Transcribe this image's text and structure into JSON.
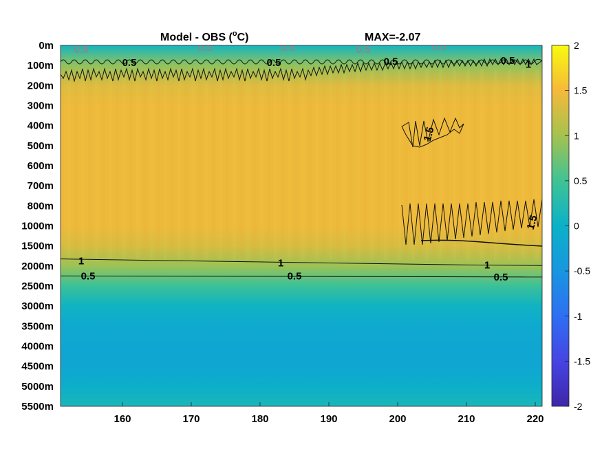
{
  "chart_data": {
    "type": "heatmap",
    "title_left": "Model - OBS (",
    "title_unit_sup": "o",
    "title_unit_tail": "C)",
    "title_right": "MAX=-2.07",
    "xlabel": "",
    "ylabel": "",
    "x_ticks": [
      "160",
      "170",
      "180",
      "190",
      "200",
      "210",
      "220"
    ],
    "x_tick_values": [
      160,
      170,
      180,
      190,
      200,
      210,
      220
    ],
    "xlim": [
      151,
      221
    ],
    "y_ticks": [
      "0m",
      "100m",
      "200m",
      "300m",
      "400m",
      "500m",
      "600m",
      "700m",
      "800m",
      "1000m",
      "1500m",
      "2000m",
      "2500m",
      "3000m",
      "3500m",
      "4000m",
      "4500m",
      "5000m",
      "5500m"
    ],
    "colorbar": {
      "ticks": [
        "2",
        "1.5",
        "1",
        "0.5",
        "0",
        "-0.5",
        "-1",
        "-1.5",
        "-2"
      ],
      "range": [
        -2,
        2
      ],
      "colormap": "parula"
    },
    "depth_profile": [
      {
        "depth": "0m",
        "value": 0.1
      },
      {
        "depth": "100m",
        "value": 0.9
      },
      {
        "depth": "200m",
        "value": 1.35
      },
      {
        "depth": "300m",
        "value": 1.45
      },
      {
        "depth": "500m",
        "value": 1.45
      },
      {
        "depth": "700m",
        "value": 1.45
      },
      {
        "depth": "1000m",
        "value": 1.45
      },
      {
        "depth": "1500m",
        "value": 1.3
      },
      {
        "depth": "2000m",
        "value": 0.95
      },
      {
        "depth": "2500m",
        "value": 0.45
      },
      {
        "depth": "3000m",
        "value": 0.05
      },
      {
        "depth": "3500m",
        "value": -0.15
      },
      {
        "depth": "4000m",
        "value": -0.2
      },
      {
        "depth": "4500m",
        "value": -0.2
      },
      {
        "depth": "5000m",
        "value": -0.05
      },
      {
        "depth": "5500m",
        "value": 0.15
      }
    ],
    "contour_labels": [
      {
        "text": "0.5",
        "x": 154,
        "depth_index": 0.2,
        "style": "gray"
      },
      {
        "text": "0.5",
        "x": 172,
        "depth_index": 0.1,
        "style": "gray"
      },
      {
        "text": "0.5",
        "x": 184,
        "depth_index": 0.1,
        "style": "gray"
      },
      {
        "text": "0.5",
        "x": 195,
        "depth_index": 0.2,
        "style": "gray"
      },
      {
        "text": "0.5",
        "x": 206,
        "depth_index": 0.05,
        "style": "gray"
      },
      {
        "text": "0.5",
        "x": 161,
        "depth_index": 0.85,
        "style": "black"
      },
      {
        "text": "0.5",
        "x": 182,
        "depth_index": 0.85,
        "style": "black"
      },
      {
        "text": "0.5",
        "x": 199,
        "depth_index": 0.8,
        "style": "black"
      },
      {
        "text": "0.5",
        "x": 216,
        "depth_index": 0.75,
        "style": "black"
      },
      {
        "text": "1",
        "x": 219,
        "depth_index": 0.95,
        "style": "black"
      },
      {
        "text": "1",
        "x": 154,
        "depth_index": 10.75,
        "style": "black"
      },
      {
        "text": "1",
        "x": 183,
        "depth_index": 10.85,
        "style": "black"
      },
      {
        "text": "1",
        "x": 213,
        "depth_index": 10.95,
        "style": "black"
      },
      {
        "text": "0.5",
        "x": 155,
        "depth_index": 11.5,
        "style": "black"
      },
      {
        "text": "0.5",
        "x": 185,
        "depth_index": 11.5,
        "style": "black"
      },
      {
        "text": "0.5",
        "x": 215,
        "depth_index": 11.55,
        "style": "black"
      },
      {
        "text": "1.5",
        "x": 205,
        "depth_index": 4.3,
        "style": "black"
      },
      {
        "text": "1.5",
        "x": 220,
        "depth_index": 8.7,
        "style": "black"
      }
    ],
    "contour_lines": [
      {
        "level": "1",
        "points": [
          [
            151,
            10.65
          ],
          [
            170,
            10.75
          ],
          [
            190,
            10.85
          ],
          [
            210,
            10.95
          ],
          [
            221,
            10.98
          ]
        ]
      },
      {
        "level": "0.5",
        "points": [
          [
            151,
            11.5
          ],
          [
            221,
            11.55
          ]
        ]
      }
    ]
  }
}
